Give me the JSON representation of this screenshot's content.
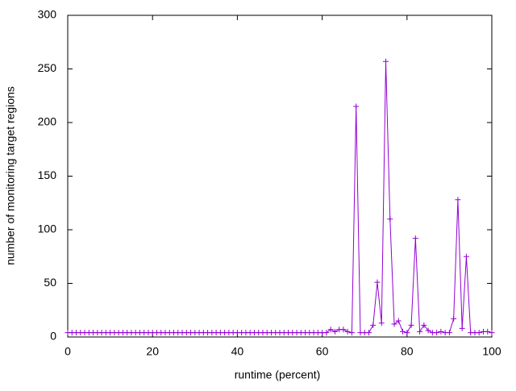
{
  "chart_data": {
    "type": "line",
    "x_label": "runtime (percent)",
    "y_label": "number of monitoring target regions",
    "x": [
      0,
      1,
      2,
      3,
      4,
      5,
      6,
      7,
      8,
      9,
      10,
      11,
      12,
      13,
      14,
      15,
      16,
      17,
      18,
      19,
      20,
      21,
      22,
      23,
      24,
      25,
      26,
      27,
      28,
      29,
      30,
      31,
      32,
      33,
      34,
      35,
      36,
      37,
      38,
      39,
      40,
      41,
      42,
      43,
      44,
      45,
      46,
      47,
      48,
      49,
      50,
      51,
      52,
      53,
      54,
      55,
      56,
      57,
      58,
      59,
      60,
      61,
      62,
      63,
      64,
      65,
      66,
      67,
      68,
      69,
      70,
      71,
      72,
      73,
      74,
      75,
      76,
      77,
      78,
      79,
      80,
      81,
      82,
      83,
      84,
      85,
      86,
      87,
      88,
      89,
      90,
      91,
      92,
      93,
      94,
      95,
      96,
      97,
      98,
      99,
      100
    ],
    "series": [
      {
        "color": "#9400d3",
        "values": [
          4,
          4,
          4,
          4,
          4,
          4,
          4,
          4,
          4,
          4,
          4,
          4,
          4,
          4,
          4,
          4,
          4,
          4,
          4,
          4,
          4,
          4,
          4,
          4,
          4,
          4,
          4,
          4,
          4,
          4,
          4,
          4,
          4,
          4,
          4,
          4,
          4,
          4,
          4,
          4,
          4,
          4,
          4,
          4,
          4,
          4,
          4,
          4,
          4,
          4,
          4,
          4,
          4,
          4,
          4,
          4,
          4,
          4,
          4,
          4,
          4,
          4,
          7,
          5,
          7,
          7,
          5,
          4,
          215,
          4,
          4,
          4,
          11,
          51,
          13,
          257,
          110,
          12,
          15,
          5,
          4,
          11,
          92,
          5,
          11,
          6,
          4,
          4,
          5,
          4,
          4,
          17,
          128,
          8,
          75,
          4,
          4,
          4,
          5,
          5,
          4
        ]
      }
    ],
    "xlim": [
      0,
      100
    ],
    "xticks": [
      0,
      20,
      40,
      60,
      80,
      100
    ],
    "ylim": [
      0,
      300
    ],
    "yticks": [
      0,
      50,
      100,
      150,
      200,
      250,
      300
    ]
  }
}
